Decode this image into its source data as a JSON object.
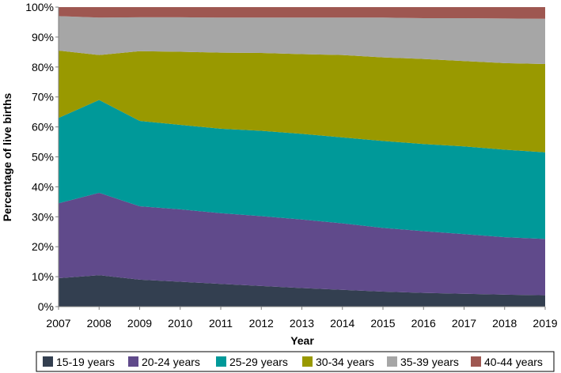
{
  "chart_data": {
    "type": "area",
    "stacked": true,
    "percent": true,
    "x": [
      2007,
      2008,
      2009,
      2010,
      2011,
      2012,
      2013,
      2014,
      2015,
      2016,
      2017,
      2018,
      2019
    ],
    "x_labels": [
      "2007",
      "2008",
      "2009",
      "2010",
      "2011",
      "2012",
      "2013",
      "2014",
      "2015",
      "2016",
      "2017",
      "2018",
      "2019"
    ],
    "y_ticks": [
      "0%",
      "10%",
      "20%",
      "30%",
      "40%",
      "50%",
      "60%",
      "70%",
      "80%",
      "90%",
      "100%"
    ],
    "ylim": [
      0,
      100
    ],
    "xlabel": "Year",
    "ylabel": "Percentage of live births",
    "grid": false,
    "legend_position": "bottom",
    "series": [
      {
        "name": "15-19 years",
        "color": "#333F50",
        "values": [
          9.5,
          10.5,
          9.0,
          8.3,
          7.6,
          6.9,
          6.2,
          5.6,
          5.0,
          4.6,
          4.3,
          4.0,
          3.8
        ]
      },
      {
        "name": "20-24 years",
        "color": "#604A8B",
        "values": [
          25.0,
          27.5,
          24.5,
          24.2,
          23.6,
          23.3,
          22.9,
          22.2,
          21.3,
          20.6,
          19.9,
          19.2,
          18.8
        ]
      },
      {
        "name": "25-29 years",
        "color": "#009999",
        "values": [
          28.5,
          31.0,
          28.5,
          28.2,
          28.2,
          28.5,
          28.6,
          28.7,
          29.0,
          29.1,
          29.3,
          29.2,
          28.9
        ]
      },
      {
        "name": "30-34 years",
        "color": "#999900",
        "values": [
          22.5,
          15.0,
          23.3,
          24.4,
          25.4,
          26.0,
          26.6,
          27.5,
          27.9,
          28.4,
          28.5,
          28.9,
          29.5
        ]
      },
      {
        "name": "35-39 years",
        "color": "#A6A6A6",
        "values": [
          11.5,
          12.5,
          11.3,
          11.5,
          11.7,
          11.8,
          12.2,
          12.5,
          13.3,
          13.6,
          14.3,
          14.9,
          15.1
        ]
      },
      {
        "name": "40-44 years",
        "color": "#9E5751",
        "values": [
          3.0,
          3.5,
          3.4,
          3.4,
          3.5,
          3.5,
          3.5,
          3.5,
          3.5,
          3.7,
          3.7,
          3.8,
          3.9
        ]
      }
    ]
  }
}
